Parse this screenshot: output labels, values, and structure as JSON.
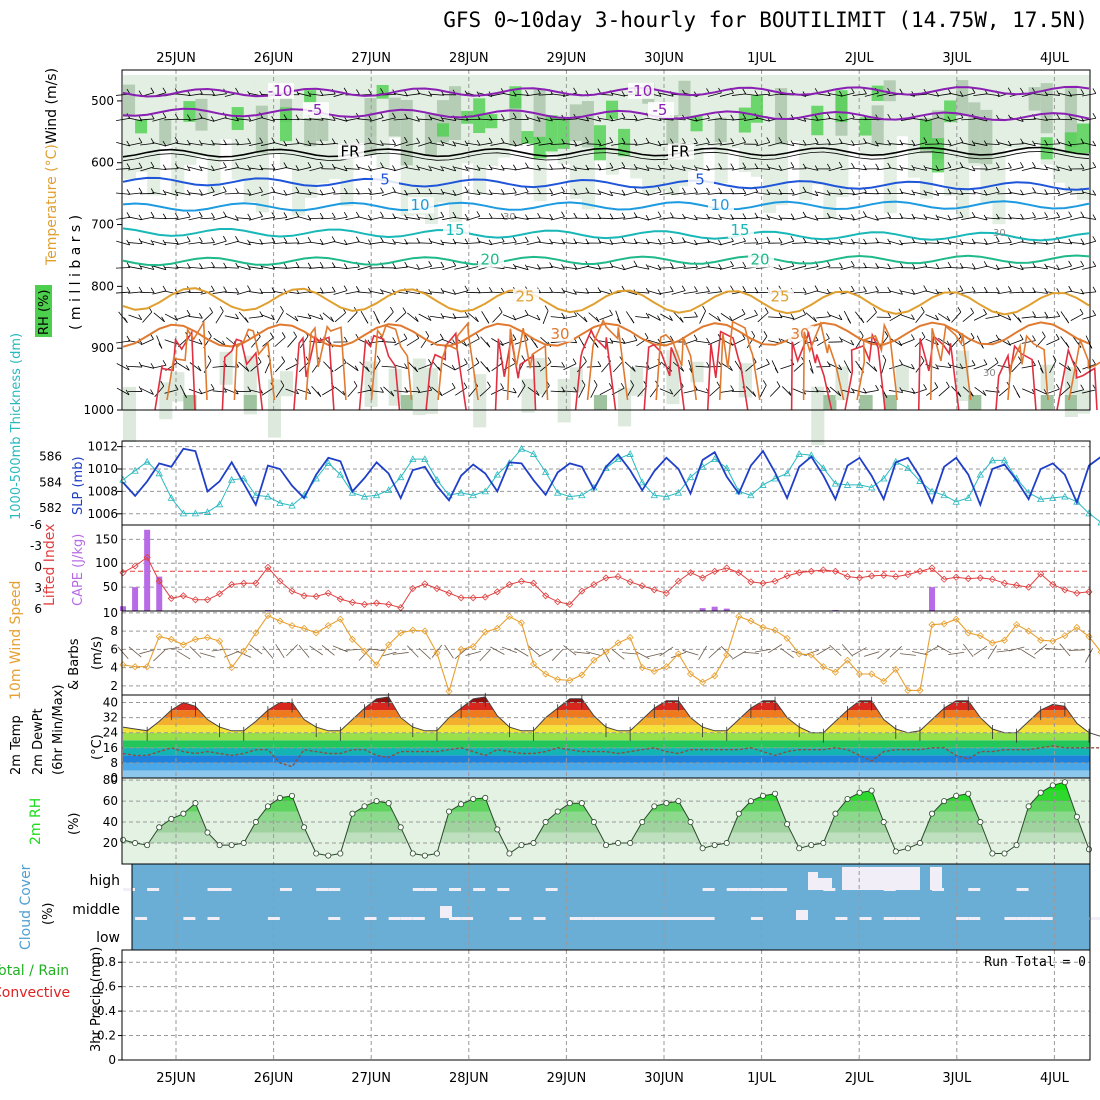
{
  "title": "GFS 0~10day 3-hourly for BOUTILIMIT (14.75W, 17.5N)",
  "colors": {
    "rh": "#4ccf4c",
    "temp_purple": "#8a1fb3",
    "temp_blue": "#1f55d8",
    "temp_lightblue": "#1e9be0",
    "temp_teal": "#19b7b7",
    "temp_green": "#1fb98a",
    "temp_orange": "#e0a030",
    "temp_dark_orange": "#e07a30",
    "temp_red": "#e03040",
    "slp": "#1f3fc8",
    "thickness": "#2ab9c0",
    "lifted_index": "#e04040",
    "cape": "#b76be6",
    "wind10m": "#e8a030",
    "cloud": "#6aaed6",
    "rh2m": "#1edc1e",
    "precip_total": "#22b022",
    "precip_conv": "#e02020"
  },
  "chart_data": [
    {
      "id": "upper-air",
      "type": "heatmap",
      "labels": {
        "wind": "Wind (m/s)",
        "temperature": "Temperature (°C)",
        "rh": "RH (%)",
        "millibars": "( m i l l i b a r s )"
      },
      "x_ticks": [
        "25JUN",
        "26JUN",
        "27JUN",
        "28JUN",
        "29JUN",
        "30JUN",
        "1JUL",
        "2JUL",
        "3JUL",
        "4JUL"
      ],
      "y_ticks": [
        500,
        600,
        700,
        800,
        900,
        1000
      ],
      "ylim": [
        1000,
        450
      ],
      "isotherms": [
        {
          "value": "-10",
          "level": 487
        },
        {
          "value": "-5",
          "level": 518
        },
        {
          "value": "FR",
          "level": 585
        },
        {
          "value": "5",
          "level": 630
        },
        {
          "value": "10",
          "level": 672
        },
        {
          "value": "15",
          "level": 712
        },
        {
          "value": "20",
          "level": 760
        },
        {
          "value": "25",
          "level": 820
        },
        {
          "value": "30",
          "level": 880
        }
      ],
      "rh_contour_label": "30"
    },
    {
      "id": "slp-thickness",
      "type": "line",
      "left_label": "1000-500mb Thickness (dm)",
      "right_label": "SLP (mb)",
      "left_ticks": [
        582,
        584,
        586
      ],
      "right_ticks": [
        1006,
        1008,
        1010,
        1012
      ],
      "series": [
        {
          "name": "SLP",
          "values": [
            1008.8,
            1007.6,
            1008.9,
            1010.5,
            1010.2,
            1011.8,
            1011.6,
            1008.0,
            1008.9,
            1010.6,
            1008.7,
            1006.8,
            1010.3,
            1010.0,
            1008.5,
            1007.4,
            1009.5,
            1011.0,
            1010.7,
            1008.0,
            1009.2,
            1010.6,
            1009.6,
            1007.4,
            1009.9,
            1010.2,
            1008.5,
            1007.2,
            1009.4,
            1010.4,
            1009.6,
            1008.0,
            1010.6,
            1010.5,
            1009.0,
            1007.7,
            1009.7,
            1010.5,
            1010.2,
            1008.2,
            1010.2,
            1011.3,
            1009.9,
            1008.1,
            1009.8,
            1011.0,
            1010.0,
            1007.8,
            1010.8,
            1011.5,
            1009.3,
            1007.8,
            1010.3,
            1011.6,
            1009.7,
            1007.4,
            1010.2,
            1011.1,
            1009.4,
            1007.3,
            1010.3,
            1011.0,
            1009.4,
            1007.3,
            1010.6,
            1011.0,
            1009.3,
            1007.0,
            1010.2,
            1011.0,
            1009.5,
            1006.8,
            1010.0,
            1010.4,
            1009.0,
            1007.3,
            1010.0,
            1010.5,
            1009.5,
            1007.0,
            1010.3,
            1011.1
          ]
        },
        {
          "name": "Thickness",
          "values": [
            584.2,
            584.9,
            585.6,
            584.7,
            582.8,
            581.6,
            581.6,
            581.7,
            582.3,
            584.2,
            584.3,
            583.0,
            582.9,
            582.4,
            582.2,
            583.0,
            584.3,
            585.5,
            584.6,
            583.2,
            582.9,
            583.0,
            583.4,
            584.4,
            585.8,
            585.8,
            584.2,
            583.0,
            583.2,
            583.0,
            583.3,
            584.6,
            585.5,
            586.6,
            586.2,
            584.8,
            583.2,
            582.9,
            583.0,
            583.6,
            585.1,
            585.8,
            586.2,
            584.0,
            583.0,
            582.9,
            583.2,
            584.4,
            585.2,
            585.8,
            585.1,
            583.3,
            583.0,
            583.8,
            584.3,
            584.7,
            586.2,
            586.1,
            585.1,
            583.9,
            583.8,
            583.8,
            583.6,
            584.3,
            585.6,
            585.1,
            584.1,
            583.3,
            583.0,
            582.5,
            582.8,
            584.6,
            585.7,
            585.7,
            584.3,
            583.2,
            582.7,
            582.8,
            582.9,
            582.5,
            581.6,
            580.9
          ]
        }
      ]
    },
    {
      "id": "cape-li",
      "type": "bar",
      "left_label": "Lifted Index",
      "right_label": "CAPE (J/kg)",
      "left_ticks": [
        "-6",
        "-3",
        "0",
        "3",
        "6"
      ],
      "right_ticks": [
        50,
        100,
        150
      ],
      "cape_bars": [
        {
          "i": 0,
          "value": 10
        },
        {
          "i": 1,
          "value": 50
        },
        {
          "i": 2,
          "value": 170
        },
        {
          "i": 3,
          "value": 72
        },
        {
          "i": 12,
          "value": 2
        },
        {
          "i": 48,
          "value": 6
        },
        {
          "i": 49,
          "value": 9
        },
        {
          "i": 50,
          "value": 5
        },
        {
          "i": 58,
          "value": 1
        },
        {
          "i": 59,
          "value": 2
        },
        {
          "i": 60,
          "value": 1
        },
        {
          "i": 67,
          "value": 50
        }
      ],
      "lifted_index": [
        0.2,
        -0.8,
        -2.1,
        1.5,
        4.1,
        3.7,
        4.3,
        4.3,
        3.4,
        2.0,
        1.8,
        1.8,
        -0.6,
        1.5,
        3.0,
        3.7,
        3.8,
        3.3,
        4.2,
        4.7,
        5.0,
        4.8,
        5.0,
        5.5,
        2.6,
        1.9,
        2.6,
        3.3,
        4.0,
        4.0,
        3.9,
        3.1,
        2.0,
        1.5,
        1.8,
        3.7,
        4.6,
        5.0,
        3.0,
        2.0,
        1.0,
        0.8,
        1.6,
        2.2,
        2.8,
        3.3,
        1.5,
        0.2,
        1.0,
        0.0,
        -0.5,
        0.2,
        1.6,
        1.8,
        1.5,
        0.7,
        0.2,
        0.0,
        -0.2,
        0.0,
        0.8,
        1.0,
        0.7,
        0.6,
        0.8,
        0.5,
        0.0,
        -0.5,
        1.2,
        0.9,
        1.1,
        1.0,
        1.2,
        1.8,
        2.1,
        2.4,
        0.4,
        2.0,
        2.8,
        3.3,
        3.1
      ]
    },
    {
      "id": "wind10m",
      "type": "line",
      "left_label": "10m Wind Speed",
      "right_label": "& Barbs",
      "unit": "(m/s)",
      "y_ticks": [
        2,
        4,
        6,
        8,
        10
      ],
      "ylim": [
        1,
        10
      ],
      "series": [
        {
          "name": "Wind Speed",
          "values": [
            4.3,
            4.1,
            4.1,
            7.4,
            7.1,
            6.5,
            7.1,
            7.3,
            6.9,
            4.0,
            5.8,
            7.8,
            9.7,
            9.1,
            8.6,
            8.3,
            7.8,
            8.6,
            9.3,
            7.1,
            5.8,
            4.3,
            6.5,
            7.8,
            8.1,
            8.0,
            5.6,
            1.4,
            6.0,
            6.3,
            7.9,
            8.3,
            9.6,
            8.9,
            4.4,
            3.3,
            2.7,
            2.6,
            3.2,
            4.8,
            5.7,
            6.7,
            7.3,
            4.0,
            3.6,
            4.1,
            5.5,
            3.3,
            2.4,
            3.1,
            5.4,
            9.6,
            9.1,
            8.4,
            8.1,
            7.2,
            5.5,
            5.4,
            4.1,
            3.5,
            4.8,
            3.3,
            3.3,
            2.5,
            3.8,
            1.5,
            1.5,
            8.7,
            8.8,
            9.3,
            7.8,
            7.5,
            6.7,
            7.0,
            8.7,
            8.0,
            7.0,
            6.9,
            7.5,
            8.4,
            7.4,
            5.7
          ]
        }
      ]
    },
    {
      "id": "temp2m",
      "type": "area",
      "left_label": "2m Temp",
      "left_label2": "2m DewPt",
      "left_label3": "(6hr Min/Max)",
      "unit": "(°C)",
      "y_ticks": [
        0,
        8,
        16,
        24,
        32,
        40
      ],
      "ylim": [
        0,
        44
      ],
      "series": [
        {
          "name": "Temp",
          "values": [
            27,
            26,
            25,
            30,
            36,
            40,
            38,
            31,
            27,
            25,
            25,
            30,
            36,
            40,
            40,
            31,
            27,
            25,
            25,
            31,
            37,
            42,
            43,
            32,
            27,
            25,
            25,
            32,
            37,
            42,
            43,
            33,
            27,
            25,
            25,
            32,
            37,
            42,
            42,
            33,
            27,
            25,
            25,
            31,
            37,
            41,
            41,
            32,
            27,
            25,
            25,
            31,
            37,
            41,
            41,
            32,
            27,
            24,
            24,
            30,
            36,
            41,
            41,
            31,
            26,
            24,
            25,
            31,
            37,
            41,
            41,
            32,
            26,
            24,
            24,
            30,
            36,
            39,
            38,
            29,
            24,
            22
          ]
        },
        {
          "name": "DewPt",
          "values": [
            13,
            12,
            12,
            14,
            16,
            14,
            13,
            14,
            13,
            12,
            13,
            15,
            15,
            8,
            6,
            15,
            14,
            13,
            13,
            15,
            15,
            12,
            11,
            14,
            14,
            14,
            14,
            15,
            16,
            14,
            12,
            15,
            14,
            13,
            13,
            14,
            16,
            15,
            14,
            14,
            14,
            13,
            14,
            15,
            16,
            14,
            13,
            15,
            15,
            15,
            15,
            15,
            16,
            14,
            12,
            14,
            15,
            15,
            15,
            16,
            15,
            12,
            9,
            14,
            15,
            15,
            15,
            16,
            16,
            12,
            10,
            14,
            14,
            15,
            15,
            15,
            16,
            17,
            16,
            16,
            16,
            16
          ]
        }
      ]
    },
    {
      "id": "rh2m",
      "type": "area",
      "left_label": "2m RH",
      "unit": "(%)",
      "y_ticks": [
        20,
        40,
        60,
        80
      ],
      "ylim": [
        0,
        80
      ],
      "series": [
        {
          "name": "RH",
          "values": [
            23,
            20,
            18,
            35,
            43,
            48,
            58,
            30,
            18,
            18,
            20,
            40,
            55,
            63,
            65,
            35,
            10,
            8,
            10,
            48,
            55,
            60,
            58,
            35,
            10,
            8,
            10,
            50,
            57,
            62,
            63,
            33,
            10,
            18,
            20,
            40,
            50,
            58,
            58,
            40,
            18,
            20,
            20,
            40,
            55,
            58,
            60,
            40,
            15,
            18,
            20,
            48,
            60,
            65,
            67,
            38,
            15,
            18,
            20,
            48,
            62,
            68,
            70,
            40,
            12,
            15,
            20,
            48,
            60,
            65,
            67,
            40,
            10,
            10,
            18,
            55,
            68,
            75,
            78,
            45,
            14,
            15,
            18,
            55,
            70,
            78,
            80
          ]
        }
      ]
    },
    {
      "id": "cloud",
      "type": "heatmap",
      "left_label": "Cloud Cover",
      "unit": "(%)",
      "levels": [
        "high",
        "middle",
        "low"
      ]
    },
    {
      "id": "precip",
      "type": "bar",
      "left_label_total": "Total / Rain",
      "left_label_conv": "Convective",
      "right_label": "3hr Precip (mm)",
      "y_ticks": [
        "0",
        "0.2",
        "0.4",
        "0.6",
        "0.8"
      ],
      "ylim": [
        0,
        0.9
      ],
      "run_total": "Run Total = 0"
    }
  ]
}
